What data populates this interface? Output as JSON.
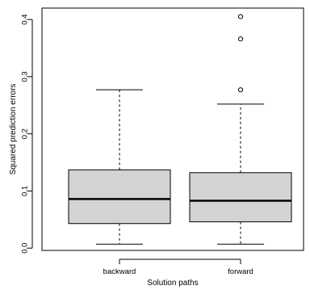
{
  "chart_data": {
    "type": "box",
    "title": "",
    "xlabel": "Solution paths",
    "ylabel": "Squared prediction errors",
    "categories": [
      "backward",
      "forward"
    ],
    "ylim": [
      -0.004,
      0.42
    ],
    "yticks": [
      0.0,
      0.1,
      0.2,
      0.3,
      0.4
    ],
    "ytick_labels": [
      "0.0",
      "0.1",
      "0.2",
      "0.3",
      "0.4"
    ],
    "grid": false,
    "box_fill": "#d3d3d3",
    "boxes": [
      {
        "name": "backward",
        "whisker_low": 0.007,
        "q1": 0.043,
        "median": 0.086,
        "q3": 0.137,
        "whisker_high": 0.277,
        "outliers": []
      },
      {
        "name": "forward",
        "whisker_low": 0.007,
        "q1": 0.046,
        "median": 0.083,
        "q3": 0.132,
        "whisker_high": 0.252,
        "outliers": [
          0.277,
          0.366,
          0.405
        ]
      }
    ]
  }
}
